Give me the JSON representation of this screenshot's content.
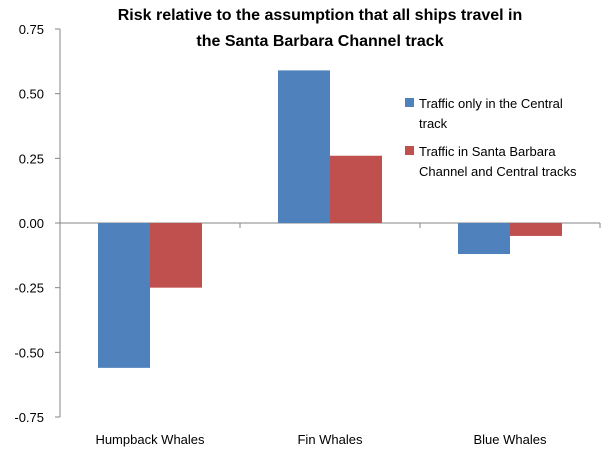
{
  "chart_data": {
    "type": "bar",
    "title_lines": [
      "Risk relative to the assumption that all ships travel in",
      "the Santa Barbara Channel track"
    ],
    "categories": [
      "Humpback Whales",
      "Fin Whales",
      "Blue Whales"
    ],
    "series": [
      {
        "name_lines": [
          "Traffic only in the Central",
          "track"
        ],
        "color": "#4f81bd",
        "values": [
          -0.56,
          0.59,
          -0.12
        ]
      },
      {
        "name_lines": [
          "Traffic in Santa Barbara",
          "Channel and Central tracks"
        ],
        "color": "#c0504d",
        "values": [
          -0.25,
          0.26,
          -0.05
        ]
      }
    ],
    "yticks": [
      "0.75",
      "0.50",
      "0.25",
      "0.00",
      "-0.25",
      "-0.50",
      "-0.75"
    ],
    "ylim": [
      -0.75,
      0.75
    ],
    "grid": false,
    "legend": "right"
  }
}
